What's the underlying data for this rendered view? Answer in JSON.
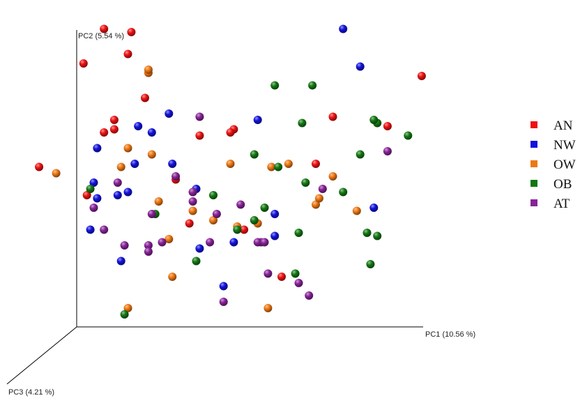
{
  "chart_data": {
    "type": "scatter",
    "projection": "3d",
    "axes": {
      "x": {
        "label": "PC1 (10.56 %)"
      },
      "y": {
        "label": "PC2 (5.54 %)"
      },
      "z": {
        "label": "PC3 (4.21 %)"
      }
    },
    "grid": false,
    "legend_position": "right",
    "series": [
      {
        "name": "AN",
        "color": "#ee1111",
        "points": [
          [
            -0.11,
            0.51
          ],
          [
            0.15,
            0.87
          ],
          [
            0.75,
            0.67
          ],
          [
            0.91,
            0.64
          ],
          [
            0.46,
            0.63
          ],
          [
            0.45,
            0.62
          ],
          [
            0.08,
            0.95
          ],
          [
            0.2,
            0.73
          ],
          [
            0.16,
            0.94
          ],
          [
            1.01,
            0.8
          ],
          [
            0.11,
            0.66
          ],
          [
            0.36,
            0.61
          ],
          [
            0.7,
            0.52
          ],
          [
            0.03,
            0.42
          ],
          [
            0.02,
            0.84
          ],
          [
            0.29,
            0.47
          ],
          [
            0.33,
            0.33
          ],
          [
            0.6,
            0.16
          ],
          [
            0.08,
            0.62
          ],
          [
            0.11,
            0.63
          ],
          [
            0.49,
            0.31
          ]
        ]
      },
      {
        "name": "NW",
        "color": "#1212dd",
        "points": [
          [
            0.27,
            0.68
          ],
          [
            0.53,
            0.66
          ],
          [
            0.58,
            0.36
          ],
          [
            0.87,
            0.38
          ],
          [
            0.58,
            0.29
          ],
          [
            0.04,
            0.31
          ],
          [
            0.05,
            0.46
          ],
          [
            0.17,
            0.52
          ],
          [
            0.43,
            0.13
          ],
          [
            0.18,
            0.64
          ],
          [
            0.83,
            0.83
          ],
          [
            0.78,
            0.95
          ],
          [
            0.22,
            0.62
          ],
          [
            0.35,
            0.44
          ],
          [
            0.15,
            0.43
          ],
          [
            0.28,
            0.52
          ],
          [
            0.06,
            0.41
          ],
          [
            0.12,
            0.42
          ],
          [
            0.13,
            0.21
          ],
          [
            0.36,
            0.25
          ],
          [
            0.06,
            0.57
          ],
          [
            0.46,
            0.27
          ]
        ]
      },
      {
        "name": "OW",
        "color": "#ee7711",
        "points": [
          [
            0.4,
            0.34
          ],
          [
            0.34,
            0.43
          ],
          [
            0.15,
            0.57
          ],
          [
            0.62,
            0.52
          ],
          [
            0.7,
            0.39
          ],
          [
            0.27,
            0.28
          ],
          [
            0.21,
            0.81
          ],
          [
            0.21,
            0.82
          ],
          [
            0.22,
            0.55
          ],
          [
            0.34,
            0.37
          ],
          [
            0.53,
            0.33
          ],
          [
            0.57,
            0.51
          ],
          [
            0.75,
            0.48
          ],
          [
            0.71,
            0.41
          ],
          [
            0.47,
            0.32
          ],
          [
            0.24,
            0.4
          ],
          [
            0.45,
            0.52
          ],
          [
            0.15,
            0.06
          ],
          [
            0.13,
            0.51
          ],
          [
            0.56,
            0.06
          ],
          [
            0.82,
            0.37
          ],
          [
            0.28,
            0.16
          ],
          [
            -0.06,
            0.49
          ]
        ]
      },
      {
        "name": "OB",
        "color": "#117711",
        "points": [
          [
            0.58,
            0.77
          ],
          [
            0.69,
            0.77
          ],
          [
            0.88,
            0.65
          ],
          [
            0.66,
            0.65
          ],
          [
            0.83,
            0.55
          ],
          [
            0.97,
            0.61
          ],
          [
            0.4,
            0.42
          ],
          [
            0.23,
            0.36
          ],
          [
            0.35,
            0.21
          ],
          [
            0.52,
            0.34
          ],
          [
            0.88,
            0.29
          ],
          [
            0.55,
            0.38
          ],
          [
            0.87,
            0.66
          ],
          [
            0.59,
            0.51
          ],
          [
            0.78,
            0.43
          ],
          [
            0.14,
            0.04
          ],
          [
            0.85,
            0.3
          ],
          [
            0.65,
            0.3
          ],
          [
            0.86,
            0.2
          ],
          [
            0.04,
            0.44
          ],
          [
            0.47,
            0.31
          ],
          [
            0.64,
            0.17
          ],
          [
            0.67,
            0.46
          ],
          [
            0.52,
            0.55
          ]
        ]
      },
      {
        "name": "AT",
        "color": "#882299",
        "points": [
          [
            0.25,
            0.27
          ],
          [
            0.12,
            0.46
          ],
          [
            0.34,
            0.4
          ],
          [
            0.05,
            0.38
          ],
          [
            0.34,
            0.43
          ],
          [
            0.14,
            0.26
          ],
          [
            0.21,
            0.26
          ],
          [
            0.43,
            0.08
          ],
          [
            0.39,
            0.27
          ],
          [
            0.54,
            0.27
          ],
          [
            0.53,
            0.27
          ],
          [
            0.48,
            0.39
          ],
          [
            0.72,
            0.44
          ],
          [
            0.29,
            0.48
          ],
          [
            0.65,
            0.14
          ],
          [
            0.91,
            0.56
          ],
          [
            0.68,
            0.1
          ],
          [
            0.56,
            0.17
          ],
          [
            0.55,
            0.27
          ],
          [
            0.41,
            0.36
          ],
          [
            0.36,
            0.67
          ],
          [
            0.22,
            0.36
          ],
          [
            0.08,
            0.31
          ],
          [
            0.21,
            0.24
          ]
        ]
      }
    ]
  }
}
